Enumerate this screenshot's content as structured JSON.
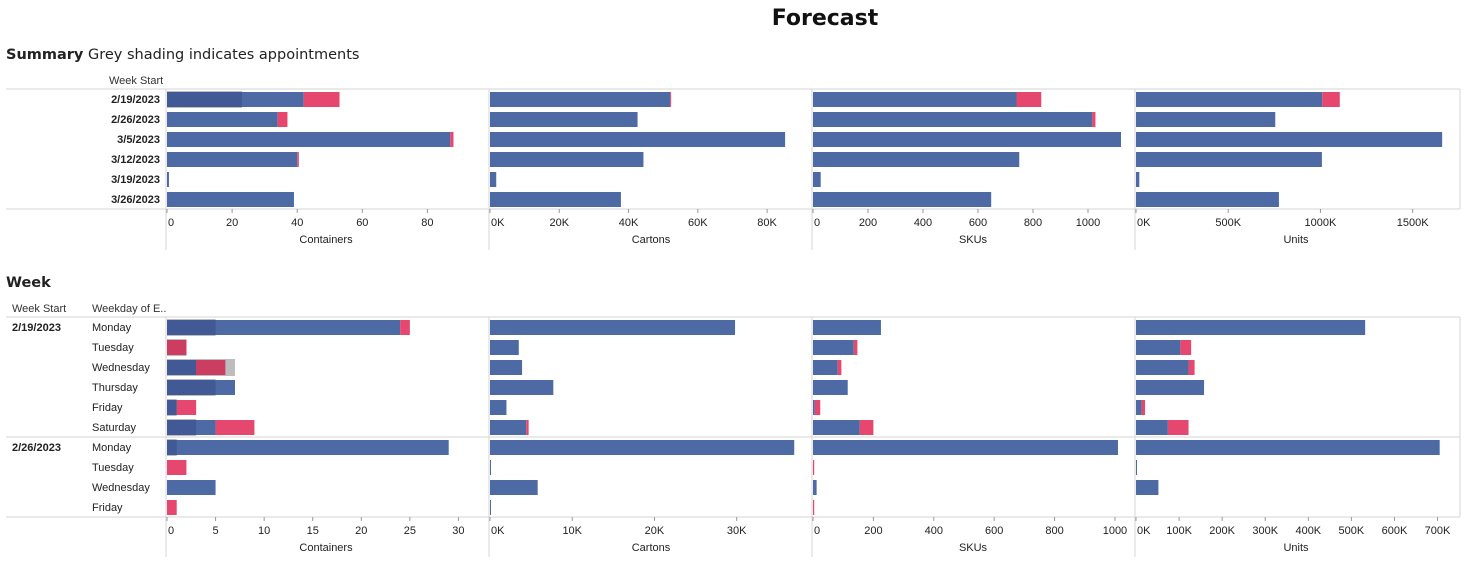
{
  "page": {
    "title": "Forecast"
  },
  "summary": {
    "title": "Summary",
    "subtitle": "Grey shading indicates appointments",
    "row_header": "Week Start"
  },
  "week": {
    "title": "Week",
    "row_header_1": "Week Start",
    "row_header_2": "Weekday of E.."
  },
  "colors": {
    "forecast": "#4e6aa4",
    "forecast_dark": "#3d5690",
    "extra": "#e5476e",
    "extra_dark": "#c23a5d",
    "appointment": "#bdbdbd",
    "grid": "#d6d6d6"
  },
  "chart_data": [
    {
      "type": "bar",
      "chart": "summary",
      "categories": [
        "2/19/2023",
        "2/26/2023",
        "3/5/2023",
        "3/12/2023",
        "3/19/2023",
        "3/26/2023"
      ],
      "panels": [
        {
          "xlabel": "Containers",
          "ticks": [
            "0",
            "20",
            "40",
            "60",
            "80"
          ],
          "tick_values": [
            0,
            20,
            40,
            60,
            80
          ],
          "xlim": [
            0,
            94
          ],
          "series": [
            {
              "name": "",
              "values": [
                42,
                34,
                87,
                40,
                0.6,
                39
              ]
            },
            {
              "name": "",
              "values": [
                11,
                3,
                1,
                0.5,
                0,
                0
              ]
            }
          ],
          "appointments": [
            23,
            0,
            0,
            0,
            0,
            0
          ]
        },
        {
          "xlabel": "Cartons",
          "ticks": [
            "0K",
            "20K",
            "40K",
            "60K",
            "80K"
          ],
          "tick_values": [
            0,
            20000,
            40000,
            60000,
            80000
          ],
          "xlim": [
            0,
            89500
          ],
          "series": [
            {
              "name": "",
              "values": [
                52000,
                42600,
                85200,
                44300,
                1800,
                37800
              ]
            },
            {
              "name": "",
              "values": [
                300,
                0,
                0,
                0,
                0,
                0
              ]
            }
          ],
          "appointments": [
            0,
            0,
            0,
            0,
            0,
            0
          ]
        },
        {
          "xlabel": "SKUs",
          "ticks": [
            "0",
            "200",
            "400",
            "600",
            "800",
            "1000"
          ],
          "tick_values": [
            0,
            200,
            400,
            600,
            800,
            1000
          ],
          "xlim": [
            0,
            1120
          ],
          "series": [
            {
              "name": "",
              "values": [
                740,
                1015,
                1120,
                750,
                28,
                648
              ]
            },
            {
              "name": "",
              "values": [
                90,
                12,
                0,
                0,
                0,
                0
              ]
            }
          ],
          "appointments": [
            0,
            0,
            0,
            0,
            0,
            0
          ]
        },
        {
          "xlabel": "Units",
          "ticks": [
            "0K",
            "500K",
            "1000K",
            "1500K"
          ],
          "tick_values": [
            0,
            500000,
            1000000,
            1500000
          ],
          "xlim": [
            0,
            1670000
          ],
          "series": [
            {
              "name": "",
              "values": [
                1010000,
                755000,
                1660000,
                1008000,
                18000,
                775000
              ]
            },
            {
              "name": "",
              "values": [
                95000,
                0,
                0,
                0,
                0,
                0
              ]
            }
          ],
          "appointments": [
            0,
            0,
            0,
            0,
            0,
            0
          ]
        }
      ]
    },
    {
      "type": "bar",
      "chart": "week",
      "groups": [
        {
          "label": "2/19/2023",
          "days": [
            "Monday",
            "Tuesday",
            "Wednesday",
            "Thursday",
            "Friday",
            "Saturday"
          ]
        },
        {
          "label": "2/26/2023",
          "days": [
            "Monday",
            "Tuesday",
            "Wednesday",
            "Friday"
          ]
        }
      ],
      "panels": [
        {
          "xlabel": "Containers",
          "ticks": [
            "0",
            "5",
            "10",
            "15",
            "20",
            "25",
            "30"
          ],
          "tick_values": [
            0,
            5,
            10,
            15,
            20,
            25,
            30
          ],
          "xlim": [
            0,
            31.5
          ],
          "series": [
            {
              "name": "",
              "values": [
                24,
                0,
                3,
                7,
                1,
                5,
                29,
                0,
                5,
                0
              ]
            },
            {
              "name": "",
              "values": [
                1,
                2,
                3,
                0,
                2,
                4,
                0,
                2,
                0,
                1
              ]
            }
          ],
          "appointments": [
            5,
            2,
            7,
            5,
            1,
            3,
            1,
            0,
            0,
            0
          ]
        },
        {
          "xlabel": "Cartons",
          "ticks": [
            "0K",
            "10K",
            "20K",
            "30K"
          ],
          "tick_values": [
            0,
            10000,
            20000,
            30000
          ],
          "xlim": [
            0,
            37700
          ],
          "series": [
            {
              "name": "",
              "values": [
                29800,
                3500,
                3900,
                7700,
                2000,
                4400,
                37000,
                100,
                5800,
                100
              ]
            },
            {
              "name": "",
              "values": [
                0,
                0,
                0,
                0,
                0,
                300,
                0,
                0,
                0,
                0
              ]
            }
          ],
          "appointments": [
            0,
            0,
            0,
            0,
            0,
            0,
            0,
            0,
            0,
            0
          ]
        },
        {
          "xlabel": "SKUs",
          "ticks": [
            "0",
            "200",
            "400",
            "600",
            "800",
            "1000"
          ],
          "tick_values": [
            0,
            200,
            400,
            600,
            800,
            1000
          ],
          "xlim": [
            0,
            1020
          ],
          "series": [
            {
              "name": "",
              "values": [
                225,
                135,
                82,
                115,
                6,
                155,
                1010,
                0,
                12,
                0
              ]
            },
            {
              "name": "",
              "values": [
                0,
                12,
                12,
                0,
                18,
                45,
                0,
                4,
                0,
                4
              ]
            }
          ],
          "appointments": [
            0,
            0,
            0,
            0,
            0,
            0,
            0,
            0,
            0,
            0
          ]
        },
        {
          "xlabel": "Units",
          "ticks": [
            "0K",
            "100K",
            "200K",
            "300K",
            "400K",
            "500K",
            "600K",
            "700K"
          ],
          "tick_values": [
            0,
            100000,
            200000,
            300000,
            400000,
            500000,
            600000,
            700000
          ],
          "xlim": [
            0,
            715000
          ],
          "series": [
            {
              "name": "",
              "values": [
                532000,
                103000,
                122000,
                158000,
                13000,
                74000,
                705000,
                1000,
                52000,
                0
              ]
            },
            {
              "name": "",
              "values": [
                0,
                25000,
                14000,
                0,
                8000,
                48000,
                0,
                0,
                0,
                0
              ]
            }
          ],
          "appointments": [
            0,
            0,
            0,
            0,
            0,
            0,
            0,
            0,
            0,
            0
          ]
        }
      ]
    }
  ]
}
